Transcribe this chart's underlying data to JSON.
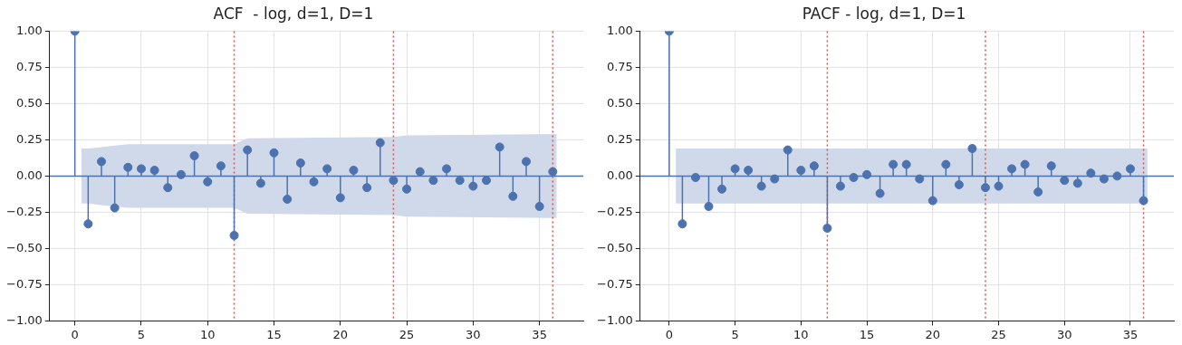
{
  "chart_data": [
    {
      "type": "lollipop",
      "title": "ACF  - log, d=1, D=1",
      "marker": "circle",
      "grid": true,
      "x": [
        0,
        1,
        2,
        3,
        4,
        5,
        6,
        7,
        8,
        9,
        10,
        11,
        12,
        13,
        14,
        15,
        16,
        17,
        18,
        19,
        20,
        21,
        22,
        23,
        24,
        25,
        26,
        27,
        28,
        29,
        30,
        31,
        32,
        33,
        34,
        35,
        36
      ],
      "series": [
        {
          "color": "#4c72b0",
          "values": [
            1,
            -0.33,
            0.1,
            -0.22,
            0.06,
            0.05,
            0.04,
            -0.08,
            0.01,
            0.14,
            -0.04,
            0.07,
            -0.41,
            0.18,
            -0.05,
            0.16,
            -0.16,
            0.09,
            -0.04,
            0.05,
            -0.15,
            0.04,
            -0.08,
            0.23,
            -0.03,
            -0.09,
            0.03,
            -0.03,
            0.05,
            -0.03,
            -0.07,
            -0.03,
            0.2,
            -0.14,
            0.1,
            -0.21,
            0.03
          ]
        },
        {
          "type": "area",
          "color": "#d0d9ea",
          "x": [
            0.5,
            1,
            2,
            3,
            4,
            12,
            13,
            24,
            25,
            36.3
          ],
          "values": [
            null,
            null,
            null,
            null,
            null,
            null,
            null,
            null,
            null,
            null
          ],
          "lower": [
            -0.19,
            -0.19,
            -0.2,
            -0.21,
            -0.22,
            -0.22,
            -0.26,
            -0.27,
            -0.28,
            -0.29
          ],
          "upper": [
            0.19,
            0.19,
            0.2,
            0.21,
            0.22,
            0.22,
            0.26,
            0.27,
            0.28,
            0.29
          ]
        }
      ],
      "ref_lines": [
        {
          "axis": "y",
          "value": 0,
          "color": "#4c72b0",
          "line_style": "solid"
        },
        {
          "axis": "x",
          "value": 12,
          "color": "#d9534f",
          "line_style": "dotted"
        },
        {
          "axis": "x",
          "value": 24,
          "color": "#d9534f",
          "line_style": "dotted"
        },
        {
          "axis": "x",
          "value": 36,
          "color": "#d9534f",
          "line_style": "dotted"
        }
      ],
      "xlim": [
        -1.9,
        38.3
      ],
      "xticks": [
        0,
        5,
        10,
        15,
        20,
        25,
        30,
        35
      ],
      "ylim": [
        -1,
        1
      ],
      "yticks": [
        {
          "value": -1,
          "label": "−1.00"
        },
        {
          "value": -0.75,
          "label": "−0.75"
        },
        {
          "value": -0.5,
          "label": "−0.50"
        },
        {
          "value": -0.25,
          "label": "−0.25"
        },
        {
          "value": 0,
          "label": "0.00"
        },
        {
          "value": 0.25,
          "label": "0.25"
        },
        {
          "value": 0.5,
          "label": "0.50"
        },
        {
          "value": 0.75,
          "label": "0.75"
        },
        {
          "value": 1,
          "label": "1.00"
        }
      ]
    },
    {
      "type": "lollipop",
      "title": "PACF - log, d=1, D=1",
      "marker": "circle",
      "grid": true,
      "x": [
        0,
        1,
        2,
        3,
        4,
        5,
        6,
        7,
        8,
        9,
        10,
        11,
        12,
        13,
        14,
        15,
        16,
        17,
        18,
        19,
        20,
        21,
        22,
        23,
        24,
        25,
        26,
        27,
        28,
        29,
        30,
        31,
        32,
        33,
        34,
        35,
        36
      ],
      "series": [
        {
          "color": "#4c72b0",
          "values": [
            1,
            -0.33,
            -0.01,
            -0.21,
            -0.09,
            0.05,
            0.04,
            -0.07,
            -0.02,
            0.18,
            0.04,
            0.07,
            -0.36,
            -0.07,
            -0.01,
            0.01,
            -0.12,
            0.08,
            0.08,
            -0.02,
            -0.17,
            0.08,
            -0.06,
            0.19,
            -0.08,
            -0.07,
            0.05,
            0.08,
            -0.11,
            0.07,
            -0.03,
            -0.05,
            0.02,
            -0.02,
            0.0,
            0.05,
            -0.17
          ]
        },
        {
          "type": "area",
          "color": "#d0d9ea",
          "x": [
            0.5,
            36.3
          ],
          "values": [
            null,
            null
          ],
          "lower": [
            -0.19,
            -0.19
          ],
          "upper": [
            0.19,
            0.19
          ]
        }
      ],
      "ref_lines": [
        {
          "axis": "y",
          "value": 0,
          "color": "#4c72b0",
          "line_style": "solid"
        },
        {
          "axis": "x",
          "value": 12,
          "color": "#d9534f",
          "line_style": "dotted"
        },
        {
          "axis": "x",
          "value": 24,
          "color": "#d9534f",
          "line_style": "dotted"
        },
        {
          "axis": "x",
          "value": 36,
          "color": "#d9534f",
          "line_style": "dotted"
        }
      ],
      "xlim": [
        -2.2,
        38.3
      ],
      "xticks": [
        0,
        5,
        10,
        15,
        20,
        25,
        30,
        35
      ],
      "ylim": [
        -1,
        1
      ],
      "yticks": [
        {
          "value": -1,
          "label": "−1.00"
        },
        {
          "value": -0.75,
          "label": "−0.75"
        },
        {
          "value": -0.5,
          "label": "−0.50"
        },
        {
          "value": -0.25,
          "label": "−0.25"
        },
        {
          "value": 0,
          "label": "0.00"
        },
        {
          "value": 0.25,
          "label": "0.25"
        },
        {
          "value": 0.5,
          "label": "0.50"
        },
        {
          "value": 0.75,
          "label": "0.75"
        },
        {
          "value": 1,
          "label": "1.00"
        }
      ]
    }
  ]
}
